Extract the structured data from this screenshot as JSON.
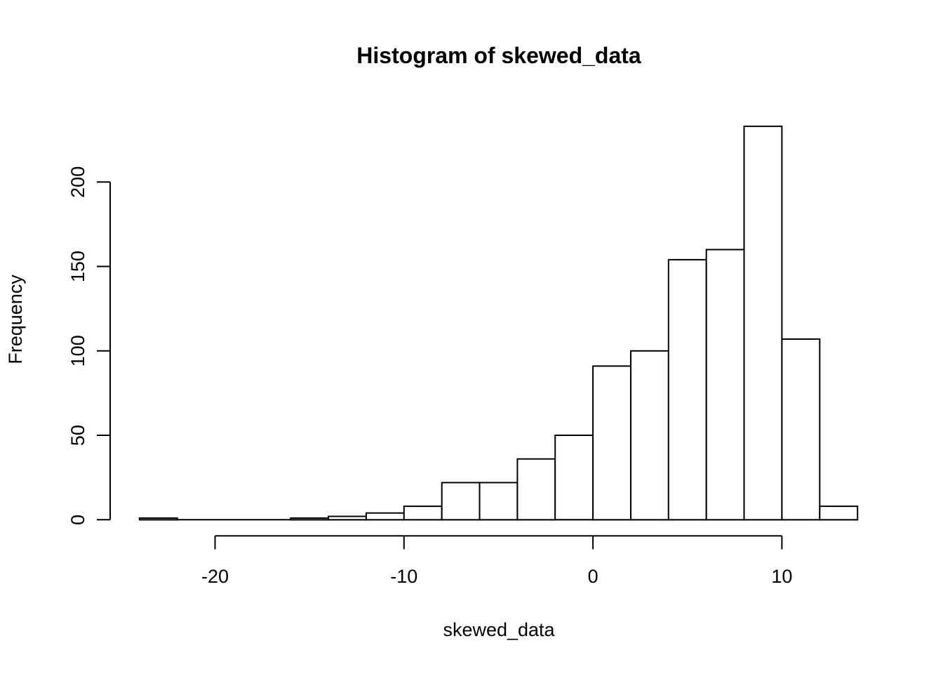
{
  "figure": {
    "background_color": "#ffffff",
    "line_color": "#000000",
    "text_color": "#000000"
  },
  "chart_data": {
    "type": "bar",
    "subtype": "histogram",
    "title": "Histogram of skewed_data",
    "xlabel": "skewed_data",
    "ylabel": "Frequency",
    "bin_edges": [
      -24,
      -22,
      -20,
      -18,
      -16,
      -14,
      -12,
      -10,
      -8,
      -6,
      -4,
      -2,
      0,
      2,
      4,
      6,
      8,
      10,
      12,
      14
    ],
    "counts": [
      1,
      0,
      0,
      0,
      1,
      2,
      4,
      8,
      22,
      22,
      36,
      50,
      91,
      100,
      154,
      160,
      233,
      107,
      8
    ],
    "x_ticks": [
      -20,
      -10,
      0,
      10
    ],
    "x_tick_labels": [
      "-20",
      "-10",
      "0",
      "10"
    ],
    "y_ticks": [
      0,
      50,
      100,
      150,
      200
    ],
    "y_tick_labels": [
      "0",
      "50",
      "100",
      "150",
      "200"
    ],
    "xlim": [
      -24,
      14
    ],
    "ylim": [
      0,
      233
    ],
    "bar_fill": "#ffffff",
    "bar_stroke": "#000000",
    "grid": false,
    "legend": false
  }
}
